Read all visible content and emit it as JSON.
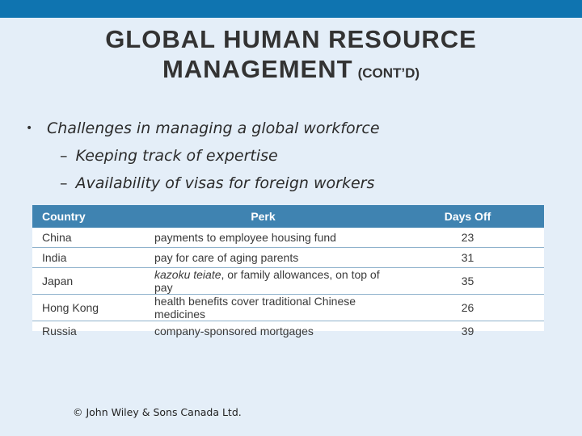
{
  "slide": {
    "title_line1": "GLOBAL HUMAN RESOURCE",
    "title_line2": "MANAGEMENT",
    "title_suffix": "(CONT’D)"
  },
  "bullets": {
    "main": "Challenges in managing a global workforce",
    "sub": [
      "Keeping track of expertise",
      "Availability of visas for foreign workers"
    ]
  },
  "table": {
    "headers": [
      "Country",
      "Perk",
      "Days Off"
    ],
    "rows": [
      {
        "country": "China",
        "perk_italic": "",
        "perk": "payments to employee housing fund",
        "days": "23"
      },
      {
        "country": "India",
        "perk_italic": "",
        "perk": "pay for care of aging parents",
        "days": "31"
      },
      {
        "country": "Japan",
        "perk_italic": "kazoku teiate",
        "perk": ", or family allowances, on top of pay",
        "days": "35"
      },
      {
        "country": "Hong Kong",
        "perk_italic": "",
        "perk": "health benefits cover traditional Chinese medicines",
        "days": "26"
      },
      {
        "country": "Russia",
        "perk_italic": "",
        "perk": "company-sponsored mortgages",
        "days": "39"
      }
    ]
  },
  "footer": "© John Wiley & Sons Canada Ltd.",
  "colors": {
    "top_bar": "#0f74b0",
    "background": "#e4eef8",
    "table_header": "#3f83b1"
  }
}
